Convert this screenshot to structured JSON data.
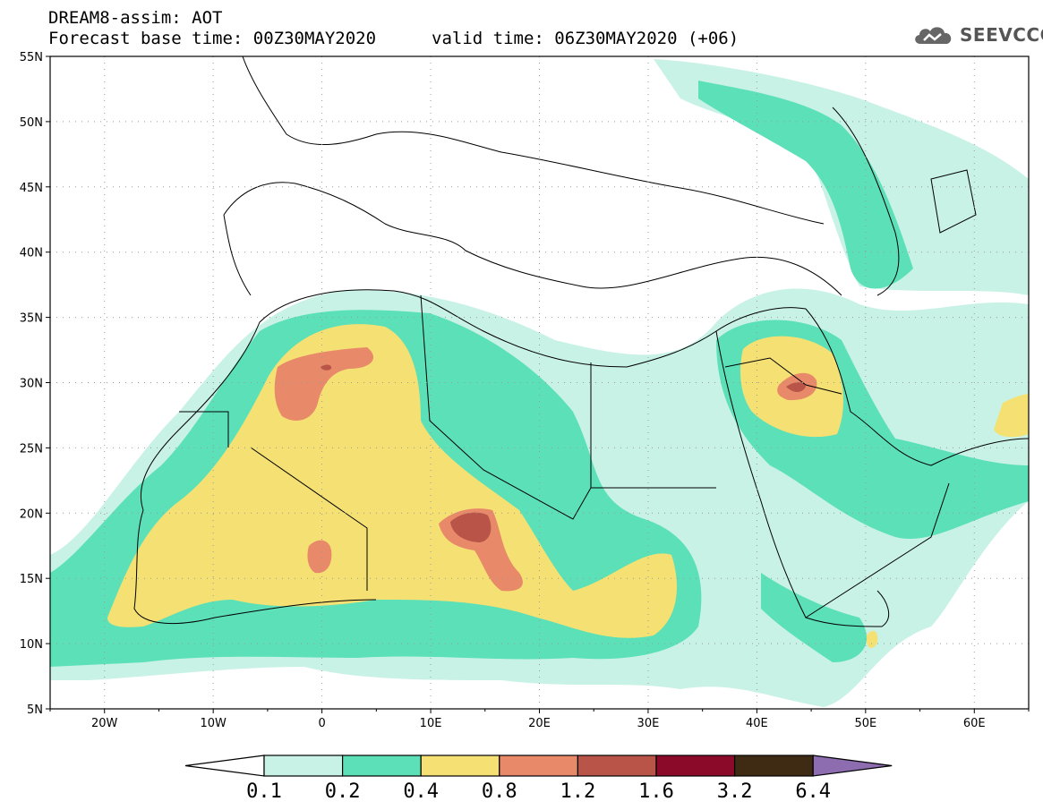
{
  "header": {
    "title_line1": "DREAM8-assim: AOT",
    "title_line2": "Forecast base time: 00Z30MAY2020",
    "valid_time": "valid time: 06Z30MAY2020 (+06)",
    "logo_text": "SEEVCCC",
    "logo_icon": "cloud-icon"
  },
  "map": {
    "lon_range": [
      -25,
      65
    ],
    "lat_range": [
      5,
      55
    ],
    "lat_labels": [
      "55N",
      "50N",
      "45N",
      "40N",
      "35N",
      "30N",
      "25N",
      "20N",
      "15N",
      "10N",
      "5N"
    ],
    "lat_values": [
      55,
      50,
      45,
      40,
      35,
      30,
      25,
      20,
      15,
      10,
      5
    ],
    "lon_labels": [
      "20W",
      "10W",
      "0",
      "10E",
      "20E",
      "30E",
      "40E",
      "50E",
      "60E"
    ],
    "lon_values": [
      -20,
      -10,
      0,
      10,
      20,
      30,
      40,
      50,
      60
    ],
    "colors": {
      "c1": "#c8f2e6",
      "c2": "#5ce0b8",
      "c3": "#f5e173",
      "c4": "#e8896a",
      "c5": "#b85448",
      "coast": "#000000"
    }
  },
  "colorbar": {
    "labels": [
      "0.1",
      "0.2",
      "0.4",
      "0.8",
      "1.2",
      "1.6",
      "3.2",
      "6.4"
    ],
    "colors": [
      "#ffffff",
      "#c8f2e6",
      "#5ce0b8",
      "#f5e173",
      "#e8896a",
      "#b85448",
      "#8b0a2a",
      "#3f2a14",
      "#8e6cb0"
    ]
  }
}
